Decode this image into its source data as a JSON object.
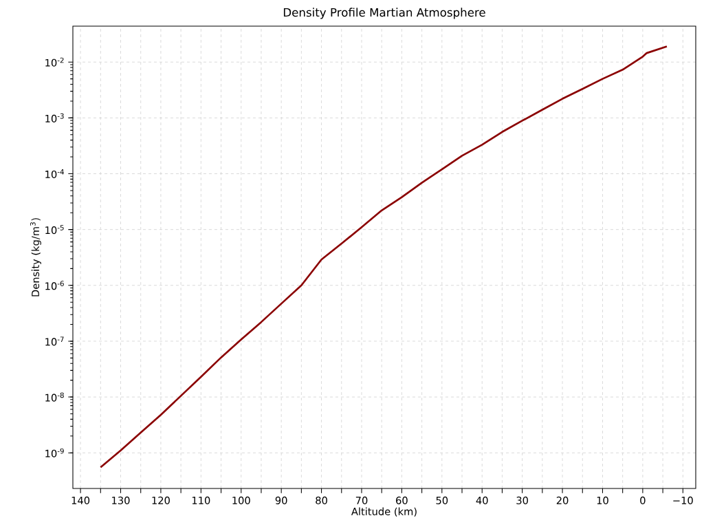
{
  "chart_data": {
    "type": "line",
    "title": "Density Profile Martian Atmosphere",
    "xlabel": "Altitude (km)",
    "ylabel": "Density (kg/m$^{3}$)",
    "log": "y",
    "grid": true,
    "line_style": "solid",
    "xlim": [
      141.9,
      -13.2
    ],
    "ylim": [
      2.3e-10,
      0.044
    ],
    "xticks": [
      140,
      {
        "value": 135,
        "label": null
      },
      130,
      {
        "value": 125,
        "label": null
      },
      120,
      {
        "value": 115,
        "label": null
      },
      110,
      {
        "value": 105,
        "label": null
      },
      100,
      {
        "value": 95,
        "label": null
      },
      90,
      {
        "value": 85,
        "label": null
      },
      80,
      {
        "value": 75,
        "label": null
      },
      70,
      {
        "value": 65,
        "label": null
      },
      60,
      {
        "value": 55,
        "label": null
      },
      50,
      {
        "value": 45,
        "label": null
      },
      40,
      {
        "value": 35,
        "label": null
      },
      30,
      {
        "value": 25,
        "label": null
      },
      20,
      {
        "value": 15,
        "label": null
      },
      10,
      {
        "value": 5,
        "label": null
      },
      0,
      {
        "value": -5,
        "label": null
      },
      {
        "value": -10,
        "label": "−10"
      }
    ],
    "yticks": [
      {
        "value": 1e-09,
        "label": "10$^{-9}$"
      },
      {
        "value": 1e-08,
        "label": "10$^{-8}$"
      },
      {
        "value": 1e-07,
        "label": "10$^{-7}$"
      },
      {
        "value": 1e-06,
        "label": "10$^{-6}$"
      },
      {
        "value": 1e-05,
        "label": "10$^{-5}$"
      },
      {
        "value": 0.0001,
        "label": "10$^{-4}$"
      },
      {
        "value": 0.001,
        "label": "10$^{-3}$"
      },
      {
        "value": 0.01,
        "label": "10$^{-2}$"
      }
    ],
    "x": [
      135,
      130,
      125,
      120,
      115,
      110,
      105,
      100,
      95,
      90,
      85,
      80,
      75,
      70,
      65,
      60,
      55,
      50,
      45,
      40,
      35,
      30,
      25,
      20,
      15,
      10,
      5,
      0,
      -1,
      -6
    ],
    "series": [
      {
        "color": "#8b0000",
        "values": [
          5.5e-10,
          1.1e-09,
          2.3e-09,
          4.8e-09,
          1.05e-08,
          2.3e-08,
          5.1e-08,
          1.07e-07,
          2.2e-07,
          4.7e-07,
          1e-06,
          2.9e-06,
          5.6e-06,
          1.1e-05,
          2.2e-05,
          3.8e-05,
          6.9e-05,
          0.00012,
          0.00021,
          0.00033,
          0.00056,
          0.00089,
          0.0014,
          0.0022,
          0.0033,
          0.005,
          0.0073,
          0.0125,
          0.0145,
          0.019
        ]
      }
    ]
  }
}
